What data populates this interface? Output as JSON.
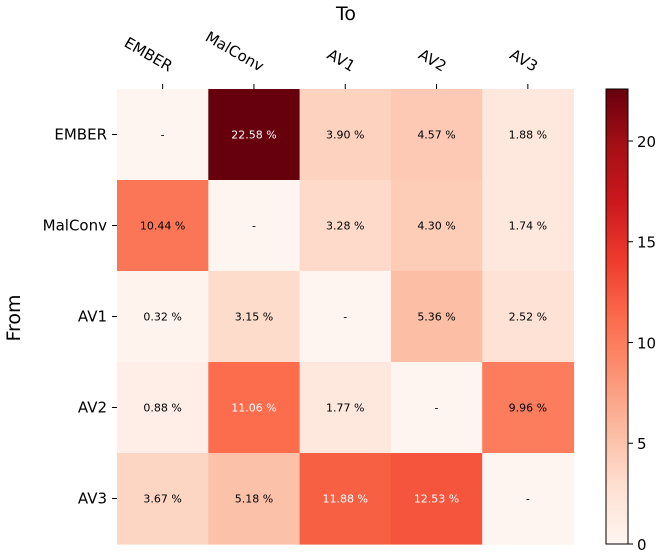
{
  "chart_data": {
    "type": "heatmap",
    "x_axis_title": "To",
    "y_axis_title": "From",
    "columns": [
      "EMBER",
      "MalConv",
      "AV1",
      "AV2",
      "AV3"
    ],
    "rows": [
      "EMBER",
      "MalConv",
      "AV1",
      "AV2",
      "AV3"
    ],
    "values": [
      [
        null,
        22.58,
        3.9,
        4.57,
        1.88
      ],
      [
        10.44,
        null,
        3.28,
        4.3,
        1.74
      ],
      [
        0.32,
        3.15,
        null,
        5.36,
        2.52
      ],
      [
        0.88,
        11.06,
        1.77,
        null,
        9.96
      ],
      [
        3.67,
        5.18,
        11.88,
        12.53,
        null
      ]
    ],
    "cell_labels": [
      [
        "-",
        "22.58 %",
        "3.90 %",
        "4.57 %",
        "1.88 %"
      ],
      [
        "10.44 %",
        "-",
        "3.28 %",
        "4.30 %",
        "1.74 %"
      ],
      [
        "0.32 %",
        "3.15 %",
        "-",
        "5.36 %",
        "2.52 %"
      ],
      [
        "0.88 %",
        "11.06 %",
        "1.77 %",
        "-",
        "9.96 %"
      ],
      [
        "3.67 %",
        "5.18 %",
        "11.88 %",
        "12.53 %",
        "-"
      ]
    ],
    "colorscale": "Reds",
    "colorbar": {
      "range": [
        0,
        22.58
      ],
      "ticks": [
        0,
        5,
        10,
        15,
        20
      ],
      "tick_labels": [
        "0",
        "5",
        "10",
        "15",
        "20"
      ]
    }
  },
  "colors": {
    "diagonal": "#fff5f0",
    "text_dark": "#000000",
    "text_light": "#ffffff"
  }
}
